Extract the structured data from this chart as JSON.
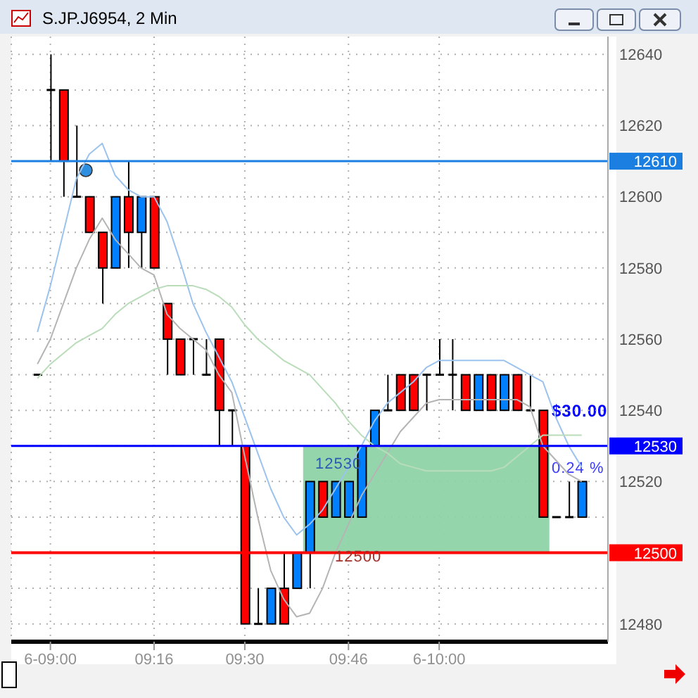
{
  "chart_data": {
    "type": "candlestick",
    "title": "S.JP.J6954, 2 Min",
    "categories": [
      null,
      "6-09:00",
      null,
      null,
      null,
      null,
      null,
      null,
      null,
      "09:16",
      null,
      null,
      null,
      null,
      null,
      null,
      "09:30",
      null,
      null,
      null,
      null,
      null,
      null,
      null,
      "09:46",
      null,
      null,
      null,
      null,
      null,
      null,
      "6-10:00",
      null,
      null,
      null,
      null,
      null,
      null,
      null,
      null,
      null,
      null,
      null
    ],
    "ohlc": [
      [
        12550,
        12550,
        12550,
        12550
      ],
      [
        12630,
        12640,
        12610,
        12630
      ],
      [
        12630,
        12630,
        12600,
        12610
      ],
      [
        12600,
        12620,
        12600,
        12600
      ],
      [
        12600,
        12600,
        12590,
        12590
      ],
      [
        12590,
        12590,
        12570,
        12580
      ],
      [
        12580,
        12600,
        12580,
        12600
      ],
      [
        12600,
        12610,
        12580,
        12590
      ],
      [
        12590,
        12600,
        12580,
        12600
      ],
      [
        12600,
        12600,
        12580,
        12580
      ],
      [
        12570,
        12570,
        12550,
        12560
      ],
      [
        12560,
        12560,
        12550,
        12550
      ],
      [
        12560,
        12560,
        12550,
        12560
      ],
      [
        12550,
        12560,
        12550,
        12550
      ],
      [
        12560,
        12560,
        12530,
        12540
      ],
      [
        12540,
        12540,
        12530,
        12540
      ],
      [
        12530,
        12530,
        12480,
        12480
      ],
      [
        12480,
        12490,
        12480,
        12480
      ],
      [
        12480,
        12490,
        12480,
        12490
      ],
      [
        12490,
        12500,
        12480,
        12480
      ],
      [
        12490,
        12500,
        12490,
        12500
      ],
      [
        12500,
        12520,
        12490,
        12520
      ],
      [
        12520,
        12520,
        12510,
        12510
      ],
      [
        12510,
        12520,
        12510,
        12520
      ],
      [
        12510,
        12520,
        12510,
        12520
      ],
      [
        12510,
        12530,
        12510,
        12530
      ],
      [
        12530,
        12540,
        12530,
        12540
      ],
      [
        12540,
        12550,
        12540,
        12540
      ],
      [
        12550,
        12550,
        12540,
        12540
      ],
      [
        12550,
        12550,
        12540,
        12540
      ],
      [
        12550,
        12550,
        12540,
        12550
      ],
      [
        12550,
        12560,
        12550,
        12550
      ],
      [
        12550,
        12560,
        12540,
        12550
      ],
      [
        12550,
        12550,
        12540,
        12540
      ],
      [
        12540,
        12550,
        12540,
        12550
      ],
      [
        12550,
        12550,
        12540,
        12540
      ],
      [
        12540,
        12550,
        12540,
        12550
      ],
      [
        12550,
        12550,
        12540,
        12540
      ],
      [
        12540,
        12550,
        12540,
        12540
      ],
      [
        12540,
        12540,
        12510,
        12510
      ],
      [
        12510,
        12510,
        12510,
        12510
      ],
      [
        12510,
        12520,
        12510,
        12510
      ],
      [
        12510,
        12520,
        12510,
        12520
      ]
    ],
    "colors": [
      "#000000",
      "#000000",
      "#ff0000",
      "#000000",
      "#ff0000",
      "#ff0000",
      "#0080ff",
      "#ff0000",
      "#0080ff",
      "#ff0000",
      "#ff0000",
      "#ff0000",
      "#000000",
      "#000000",
      "#ff0000",
      "#000000",
      "#ff0000",
      "#000000",
      "#0080ff",
      "#ff0000",
      "#0080ff",
      "#0080ff",
      "#ff0000",
      "#0080ff",
      "#0080ff",
      "#0080ff",
      "#0080ff",
      "#000000",
      "#ff0000",
      "#ff0000",
      "#000000",
      "#000000",
      "#000000",
      "#ff0000",
      "#0080ff",
      "#ff0000",
      "#0080ff",
      "#ff0000",
      "#000000",
      "#ff0000",
      "#000000",
      "#000000",
      "#0080ff"
    ],
    "series": [
      {
        "type": "line",
        "color": "#9cc3ee",
        "values": [
          12562,
          12575,
          12590,
          12605,
          12612,
          12615,
          12606,
          12602,
          12600,
          12600,
          12593,
          12582,
          12570,
          12562,
          12555,
          12548,
          12538,
          12528,
          12518,
          12510,
          12505,
          12508,
          12512,
          12518,
          12524,
          12530,
          12537,
          12542,
          12545,
          12548,
          12552,
          12554,
          12554,
          12554,
          12554,
          12554,
          12554,
          12552,
          12550,
          12548,
          12538,
          12530,
          12524
        ]
      },
      {
        "type": "line",
        "color": "#b4b4b4",
        "values": [
          12553,
          12560,
          12570,
          12580,
          12588,
          12594,
          12588,
          12584,
          12580,
          12578,
          12567,
          12563,
          12560,
          12557,
          12550,
          12545,
          12527,
          12510,
          12495,
          12487,
          12482,
          12483,
          12490,
          12500,
          12508,
          12516,
          12522,
          12528,
          12534,
          12538,
          12542,
          12543,
          12543,
          12543,
          12543,
          12543,
          12543,
          12543,
          12541,
          12530,
          12526,
          12522,
          12520
        ]
      },
      {
        "type": "line",
        "color": "#b9dcb9",
        "values": [
          12549,
          12553,
          12556,
          12559,
          12561,
          12563,
          12567,
          12570,
          12572,
          12574,
          12575,
          12575,
          12575,
          12574,
          12572,
          12569,
          12564,
          12560,
          12557,
          12554,
          12552,
          12550,
          12546,
          12542,
          12537,
          12533,
          12530,
          12528,
          12525,
          12524,
          12523,
          12523,
          12523,
          12523,
          12523,
          12523,
          12524,
          12527,
          12530,
          12533,
          12533,
          12533,
          12533
        ]
      }
    ],
    "ylim": [
      12475,
      12645
    ],
    "yticks": [
      12480,
      {
        "value": 12490,
        "label": null
      },
      {
        "value": 12500,
        "label": null
      },
      {
        "value": 12510,
        "label": null
      },
      12520,
      {
        "value": 12530,
        "label": null
      },
      12540,
      {
        "value": 12550,
        "label": null
      },
      12560,
      {
        "value": 12570,
        "label": null
      },
      12580,
      {
        "value": 12590,
        "label": null
      },
      12600,
      {
        "value": 12610,
        "label": null
      },
      12620,
      {
        "value": 12630,
        "label": null
      },
      12640
    ],
    "grid": true,
    "ref_lines": [
      {
        "axis": "y",
        "value": 12610,
        "label": "12610",
        "color": "#1a7fe0"
      },
      {
        "axis": "y",
        "value": 12530,
        "label": "12530",
        "color": "#0000ff"
      },
      {
        "axis": "y",
        "value": 12500,
        "label": "12500",
        "color": "#ff0000"
      }
    ],
    "bands": [
      {
        "axis": "y",
        "from": 12500,
        "to": 12530,
        "color": "#8fd3a8"
      }
    ],
    "annotations": [
      "$30.00",
      "0.24 %",
      "12530",
      "12500"
    ]
  }
}
